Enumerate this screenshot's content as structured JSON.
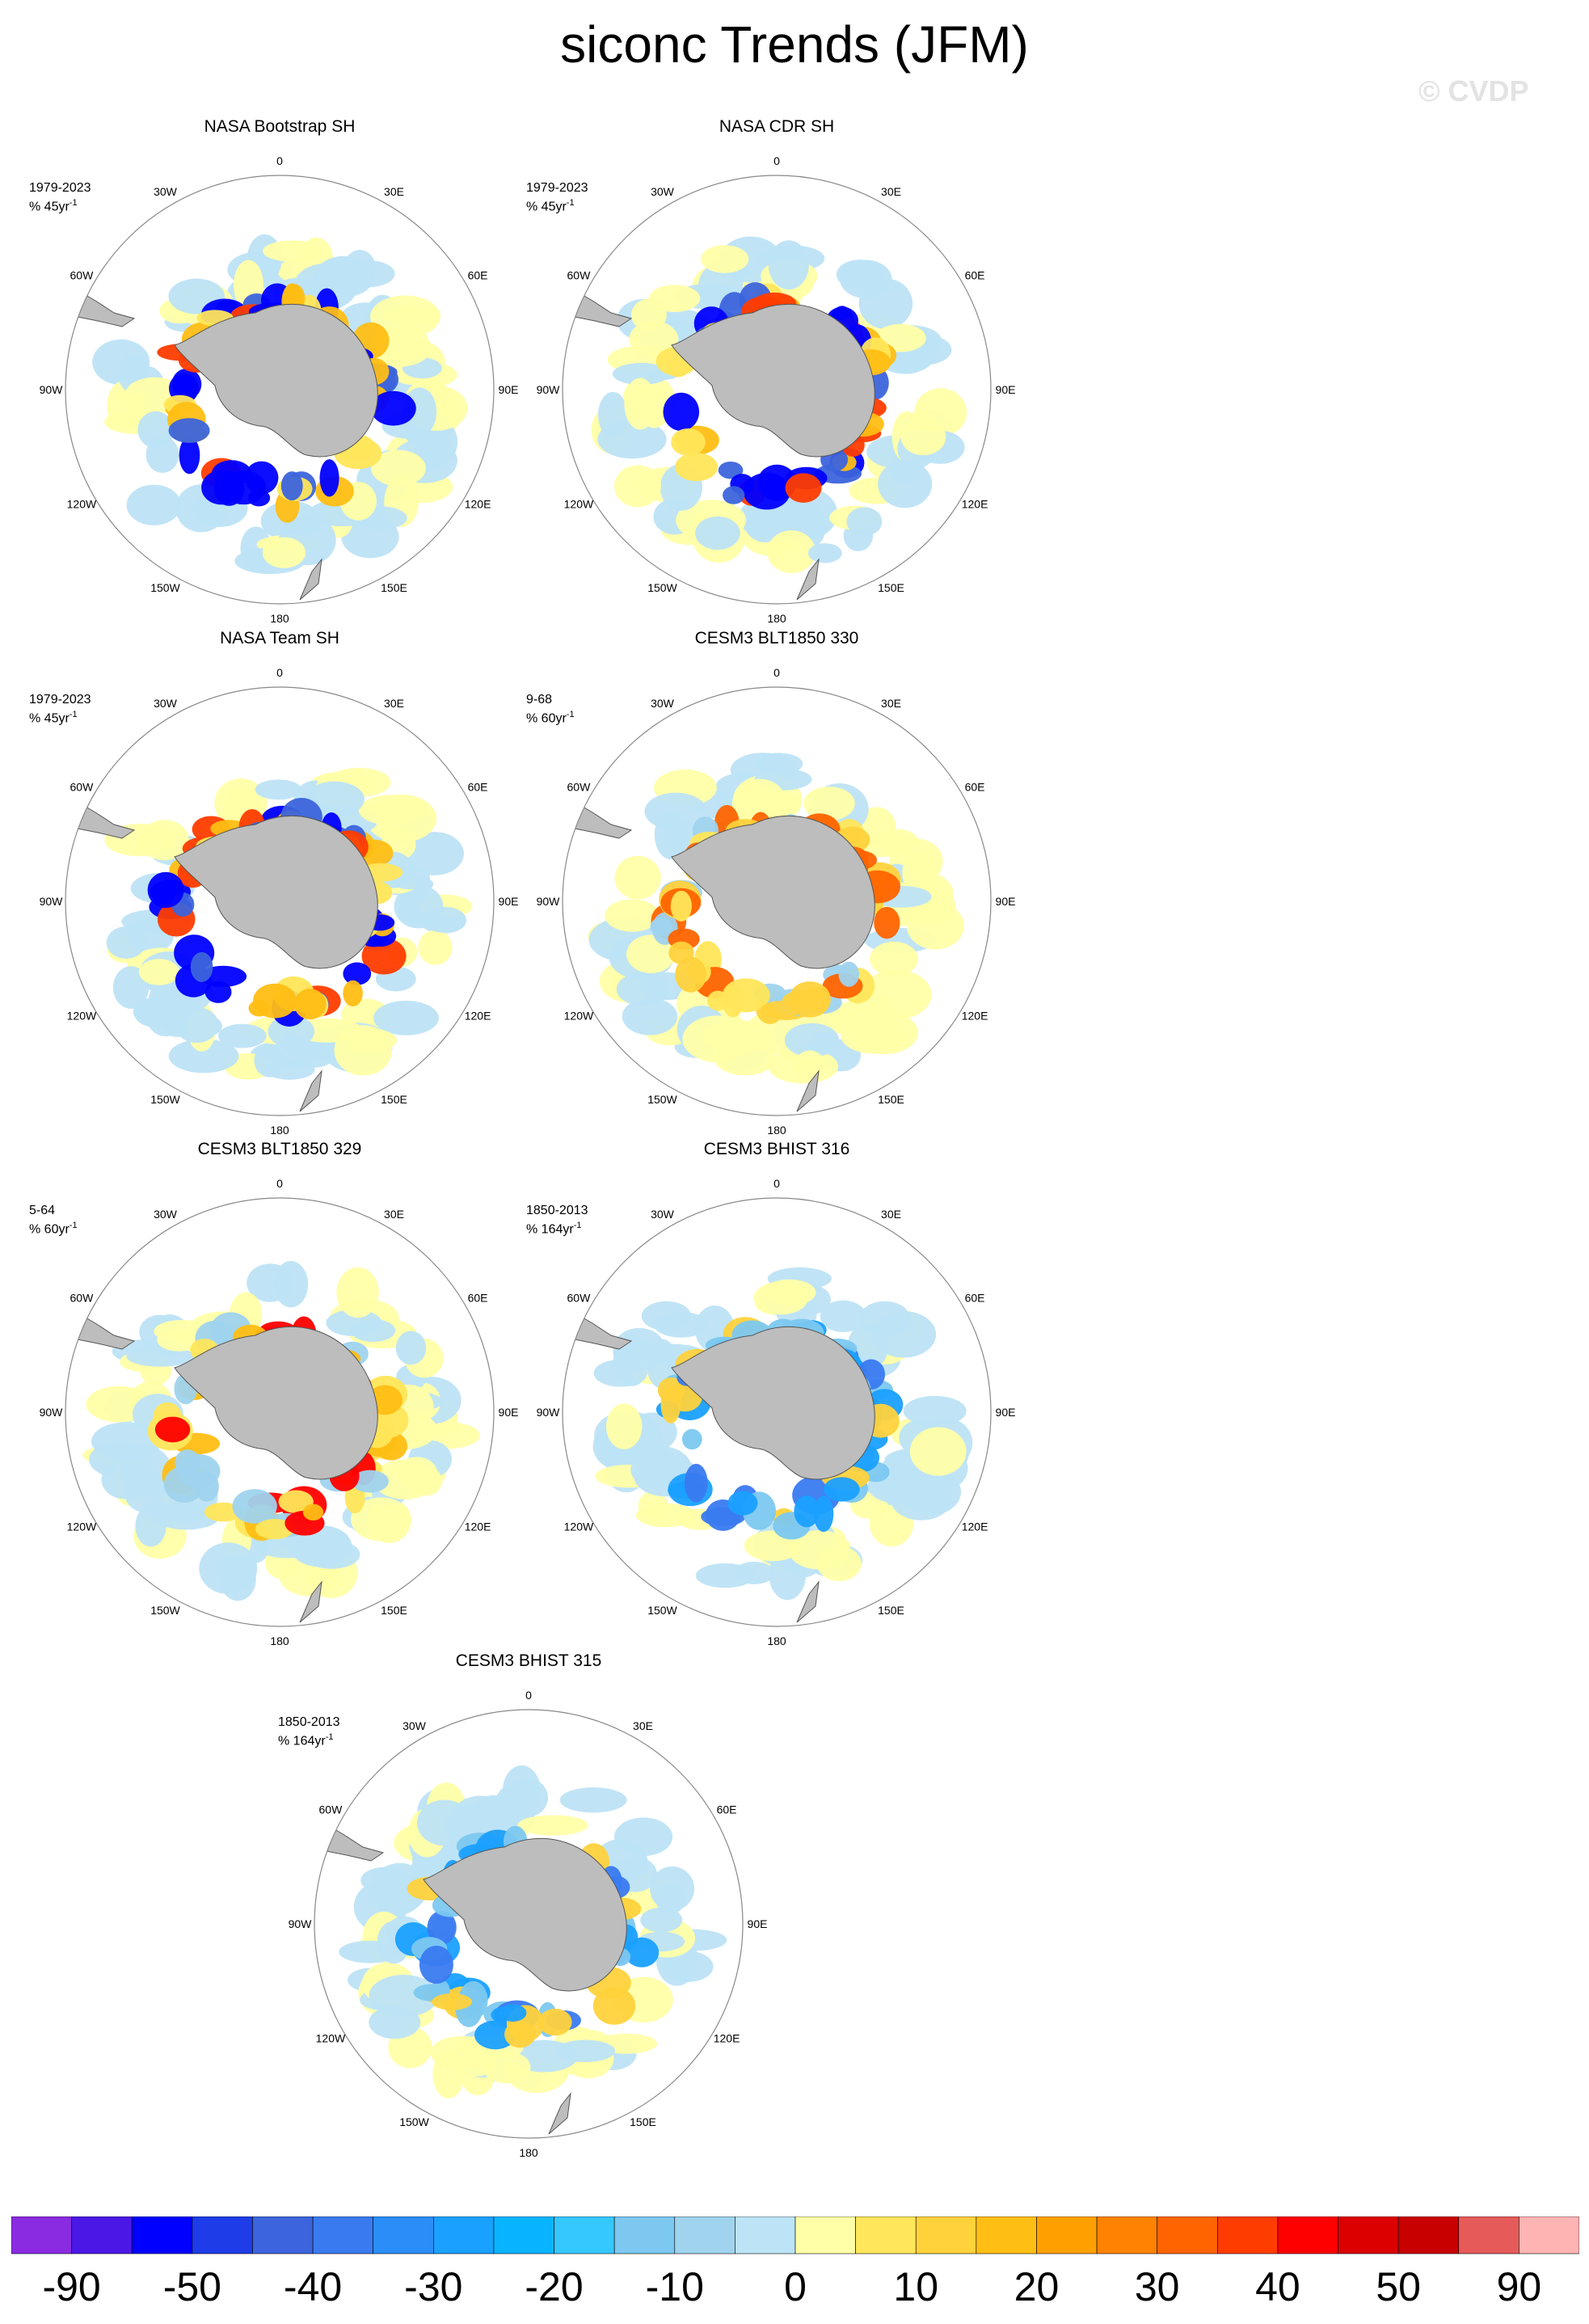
{
  "title": "siconc Trends (JFM)",
  "watermark": "© CVDP",
  "lon_labels": [
    "0",
    "30E",
    "60E",
    "90E",
    "120E",
    "150E",
    "180",
    "150W",
    "120W",
    "90W",
    "60W",
    "30W"
  ],
  "panels": [
    {
      "title": "NASA Bootstrap SH",
      "period": "1979-2023",
      "rate": "% 45yr",
      "rate_exp": "-1",
      "pattern": "obs"
    },
    {
      "title": "NASA CDR SH",
      "period": "1979-2023",
      "rate": "% 45yr",
      "rate_exp": "-1",
      "pattern": "obs"
    },
    {
      "title": "NASA Team SH",
      "period": "1979-2023",
      "rate": "% 45yr",
      "rate_exp": "-1",
      "pattern": "obs"
    },
    {
      "title": "CESM3 BLT1850 330",
      "period": "9-68",
      "rate": "% 60yr",
      "rate_exp": "-1",
      "pattern": "blt330"
    },
    {
      "title": "CESM3 BLT1850 329",
      "period": "5-64",
      "rate": "% 60yr",
      "rate_exp": "-1",
      "pattern": "blt329"
    },
    {
      "title": "CESM3 BHIST 316",
      "period": "1850-2013",
      "rate": "% 164yr",
      "rate_exp": "-1",
      "pattern": "bhist"
    },
    {
      "title": "CESM3 BHIST 315",
      "period": "1850-2013",
      "rate": "% 164yr",
      "rate_exp": "-1",
      "pattern": "bhist"
    }
  ],
  "colorbar": {
    "colors": [
      "#8a2be2",
      "#4b17e6",
      "#0000ff",
      "#1e3ce8",
      "#3c64dc",
      "#3a7af0",
      "#2b8ef8",
      "#1aa0ff",
      "#08b4ff",
      "#35c8ff",
      "#7cc8f0",
      "#9fd3ee",
      "#bde3f6",
      "#ffffa8",
      "#ffe65a",
      "#ffd23c",
      "#ffbe14",
      "#ffa000",
      "#ff8200",
      "#ff6400",
      "#ff3c00",
      "#ff0000",
      "#dc0000",
      "#c80000",
      "#e65a5a",
      "#ffb4b4"
    ],
    "labels": [
      "-90",
      "-50",
      "-40",
      "-30",
      "-20",
      "-10",
      "0",
      "10",
      "20",
      "30",
      "40",
      "50",
      "90"
    ]
  }
}
